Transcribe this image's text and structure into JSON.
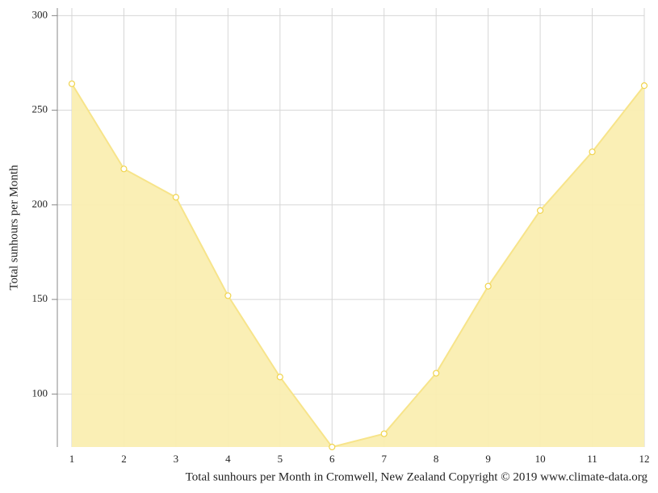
{
  "chart_data": {
    "type": "area",
    "title": "Total sunhours per Month in Cromwell, New Zealand Copyright © 2019 www.climate-data.org",
    "y_label": "Total sunhours per Month",
    "x": [
      1,
      2,
      3,
      4,
      5,
      6,
      7,
      8,
      9,
      10,
      11,
      12
    ],
    "values": [
      264,
      219,
      204,
      152,
      109,
      72,
      79,
      111,
      157,
      197,
      228,
      263
    ],
    "color": "#f7e48a",
    "fill_color": "#faeeb1",
    "marker_color": "#f0d44e",
    "xlim": [
      1,
      12
    ],
    "xticks": [
      1,
      2,
      3,
      4,
      5,
      6,
      7,
      8,
      9,
      10,
      11,
      12
    ],
    "ylim": [
      72,
      304
    ],
    "yticks": [
      100,
      150,
      200,
      250,
      300
    ],
    "grid": true
  }
}
